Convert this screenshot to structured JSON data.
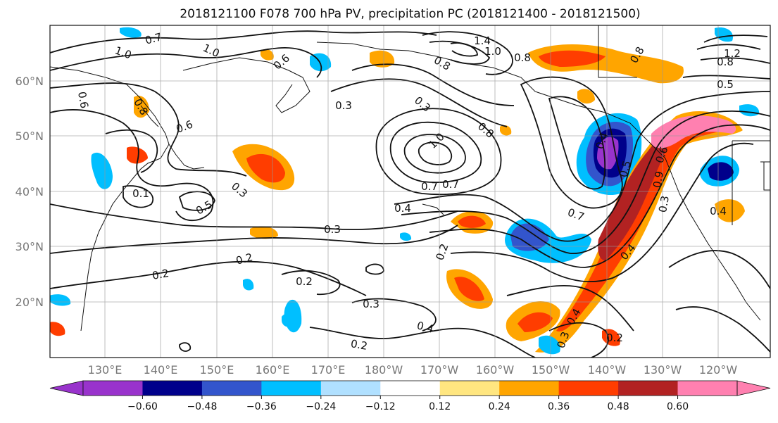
{
  "title": "2018121100 F078 700 hPa PV, precipitation PC (2018121400 - 2018121500)",
  "lat_labels": [
    "60°N",
    "50°N",
    "40°N",
    "30°N",
    "20°N"
  ],
  "lon_labels": [
    "130°E",
    "140°E",
    "150°E",
    "160°E",
    "170°E",
    "180°W",
    "170°W",
    "160°W",
    "150°W",
    "140°W",
    "130°W",
    "120°W"
  ],
  "colorbar": {
    "colors": [
      "#9933cc",
      "#00008b",
      "#3355cc",
      "#00bfff",
      "#b0e0ff",
      "#ffffff",
      "#ffe680",
      "#ffa500",
      "#ff3d00",
      "#b22222",
      "#ff80b0"
    ],
    "tick_labels": [
      "−0.60",
      "−0.48",
      "−0.36",
      "−0.24",
      "−0.12",
      "0.12",
      "0.24",
      "0.36",
      "0.48",
      "0.60"
    ]
  },
  "pv_contour_labels": [
    "0.7",
    "1.0",
    "1.0",
    "0.6",
    "0.6",
    "0.6",
    "0.8",
    "0.1",
    "0.5",
    "0.3",
    "0.3",
    "0.3",
    "1.4",
    "1.0",
    "0.8",
    "0.8",
    "0.7",
    "1.0",
    "0.8",
    "0.7",
    "0.4",
    "0.3",
    "0.2",
    "0.2",
    "0.2",
    "0.3",
    "0.4",
    "0.2",
    "0.2",
    "0.7",
    "0.4",
    "0.4",
    "0.3",
    "0.2",
    "1.2",
    "0.8",
    "0.5",
    "0.6",
    "0.4",
    "0.5",
    "0.3",
    "0.8",
    "0.9",
    "0.4"
  ]
}
